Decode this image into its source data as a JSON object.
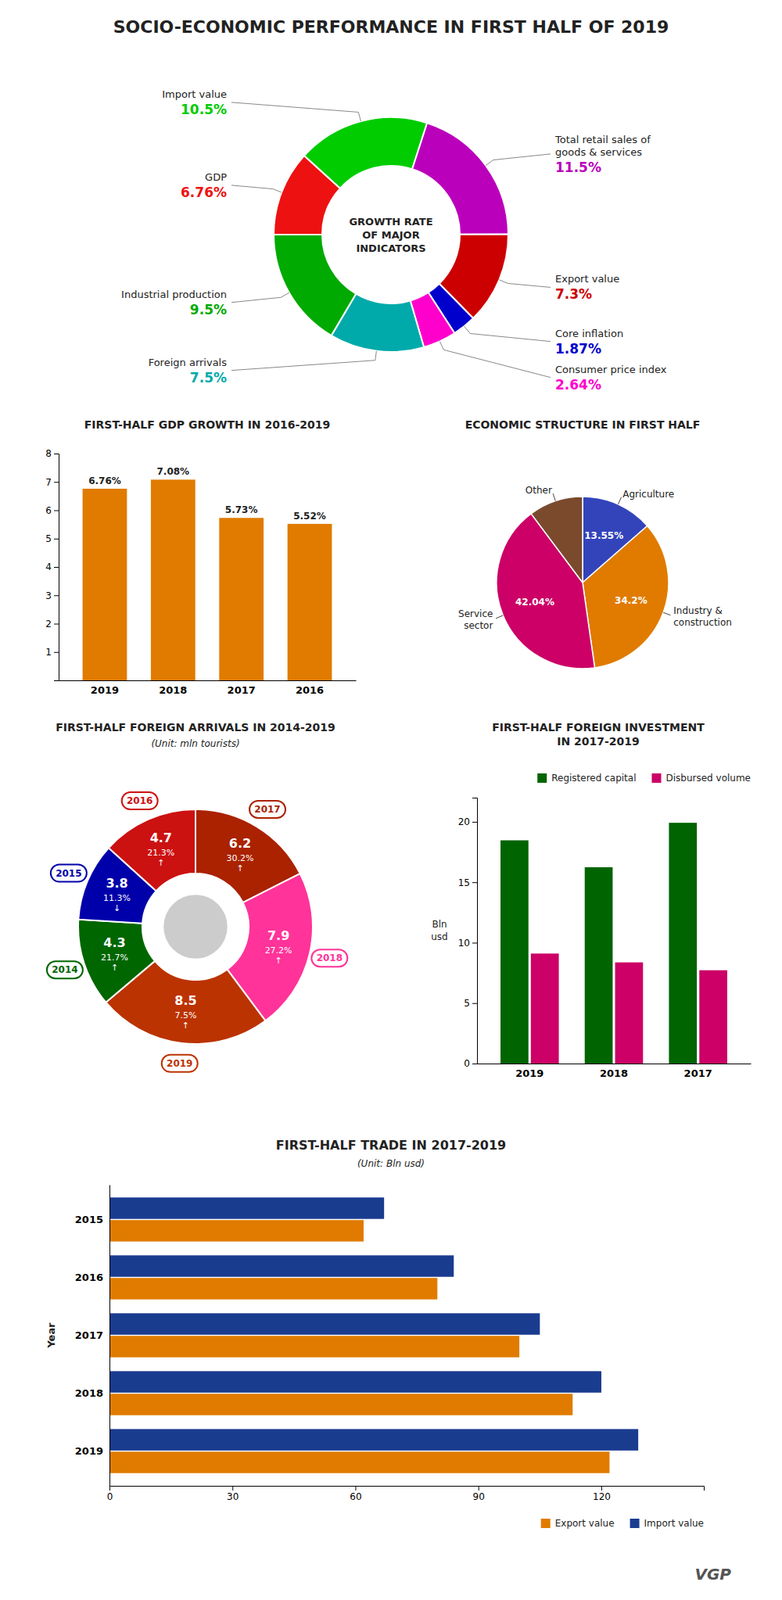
{
  "title": "SOCIO-ECONOMIC PERFORMANCE IN FIRST HALF OF 2019",
  "annotations": [
    "VGP"
  ],
  "chart_data": [
    {
      "type": "donut",
      "title": "GROWTH RATE\nOF MAJOR\nINDICATORS",
      "categories": [
        "GDP",
        "Import value",
        "Total retail sales of\ngoods & services",
        "Export value",
        "Core inflation",
        "Consumer price index",
        "Foreign arrivals",
        "Industrial production"
      ],
      "values": [
        6.76,
        10.5,
        11.5,
        7.3,
        1.87,
        2.64,
        7.5,
        9.5
      ],
      "value_labels": [
        "6.76%",
        "10.5%",
        "11.5%",
        "7.3%",
        "1.87%",
        "2.64%",
        "7.5%",
        "9.5%"
      ],
      "colors": [
        "#EE1111",
        "#00CC00",
        "#BB00BB",
        "#CC0000",
        "#0000CC",
        "#FF00CC",
        "#00AAAA",
        "#00AA00"
      ],
      "data_labels": true
    },
    {
      "type": "bar",
      "title": "FIRST-HALF GDP GROWTH IN 2016-2019",
      "categories": [
        "2019",
        "2018",
        "2017",
        "2016"
      ],
      "values": [
        6.76,
        7.08,
        5.73,
        5.52
      ],
      "value_labels": [
        "6.76%",
        "7.08%",
        "5.73%",
        "5.52%"
      ],
      "color": "#E07B00",
      "ylim": [
        0,
        8
      ],
      "yticks": [
        1,
        2,
        3,
        4,
        5,
        6,
        7,
        8
      ],
      "data_labels": true
    },
    {
      "type": "pie",
      "title": "ECONOMIC STRUCTURE IN FIRST HALF",
      "categories": [
        "Agriculture",
        "Industry &\nconstruction",
        "Service\nsector",
        "Other"
      ],
      "values": [
        13.55,
        34.2,
        42.04,
        10.21
      ],
      "value_labels": [
        "13.55%",
        "34.2%",
        "42.04%",
        null
      ],
      "colors": [
        "#3344BB",
        "#E07B00",
        "#CC0066",
        "#7B4A2D"
      ],
      "data_labels": true
    },
    {
      "type": "donut",
      "title": "FIRST-HALF FOREIGN ARRIVALS IN 2014-2019",
      "subtitle": "(Unit: mln tourists)",
      "categories": [
        "2017",
        "2018",
        "2019",
        "2014",
        "2015",
        "2016"
      ],
      "values": [
        6.2,
        7.9,
        8.5,
        4.3,
        3.8,
        4.7
      ],
      "change": [
        30.2,
        27.2,
        7.5,
        21.7,
        -11.3,
        21.3
      ],
      "change_labels": [
        "30.2%\n↑",
        "27.2%\n↑",
        "7.5%\n↑",
        "21.7%\n↑",
        "11.3%\n↓",
        "21.3%\n↑"
      ],
      "colors": [
        "#AA2200",
        "#FF3399",
        "#BB3300",
        "#006600",
        "#0000AA",
        "#CC1111"
      ],
      "data_labels": true
    },
    {
      "type": "bar",
      "title": "FIRST-HALF FOREIGN INVESTMENT\nIN 2017-2019",
      "categories": [
        "2019",
        "2018",
        "2017"
      ],
      "series": [
        {
          "name": "Registered capital",
          "color": "#006400",
          "values": [
            18.47,
            16.24,
            19.92
          ]
        },
        {
          "name": "Disbursed volume",
          "color": "#CC0066",
          "values": [
            9.1,
            8.37,
            7.72
          ]
        }
      ],
      "ylim": [
        0,
        22
      ],
      "yticks": [
        0,
        5,
        10,
        15,
        20
      ],
      "ylabel": "Bln\nusd",
      "legend": "upper right"
    },
    {
      "type": "bar",
      "orientation": "horizontal",
      "title": "FIRST-HALF TRADE IN 2017-2019",
      "subtitle": "(Unit: Bln usd)",
      "categories": [
        "2019",
        "2018",
        "2017",
        "2016",
        "2015"
      ],
      "series": [
        {
          "name": "Export value",
          "color": "#E07B00",
          "values": [
            122.0,
            113.0,
            100.0,
            80.0,
            62.0
          ]
        },
        {
          "name": "Import value",
          "color": "#1A3C8F",
          "values": [
            129.0,
            120.0,
            105.0,
            84.0,
            67.0
          ]
        }
      ],
      "xlim": [
        0,
        145
      ],
      "xticks": [
        0,
        30,
        60,
        90,
        120
      ],
      "ylabel": "Year",
      "legend": "lower right"
    }
  ]
}
